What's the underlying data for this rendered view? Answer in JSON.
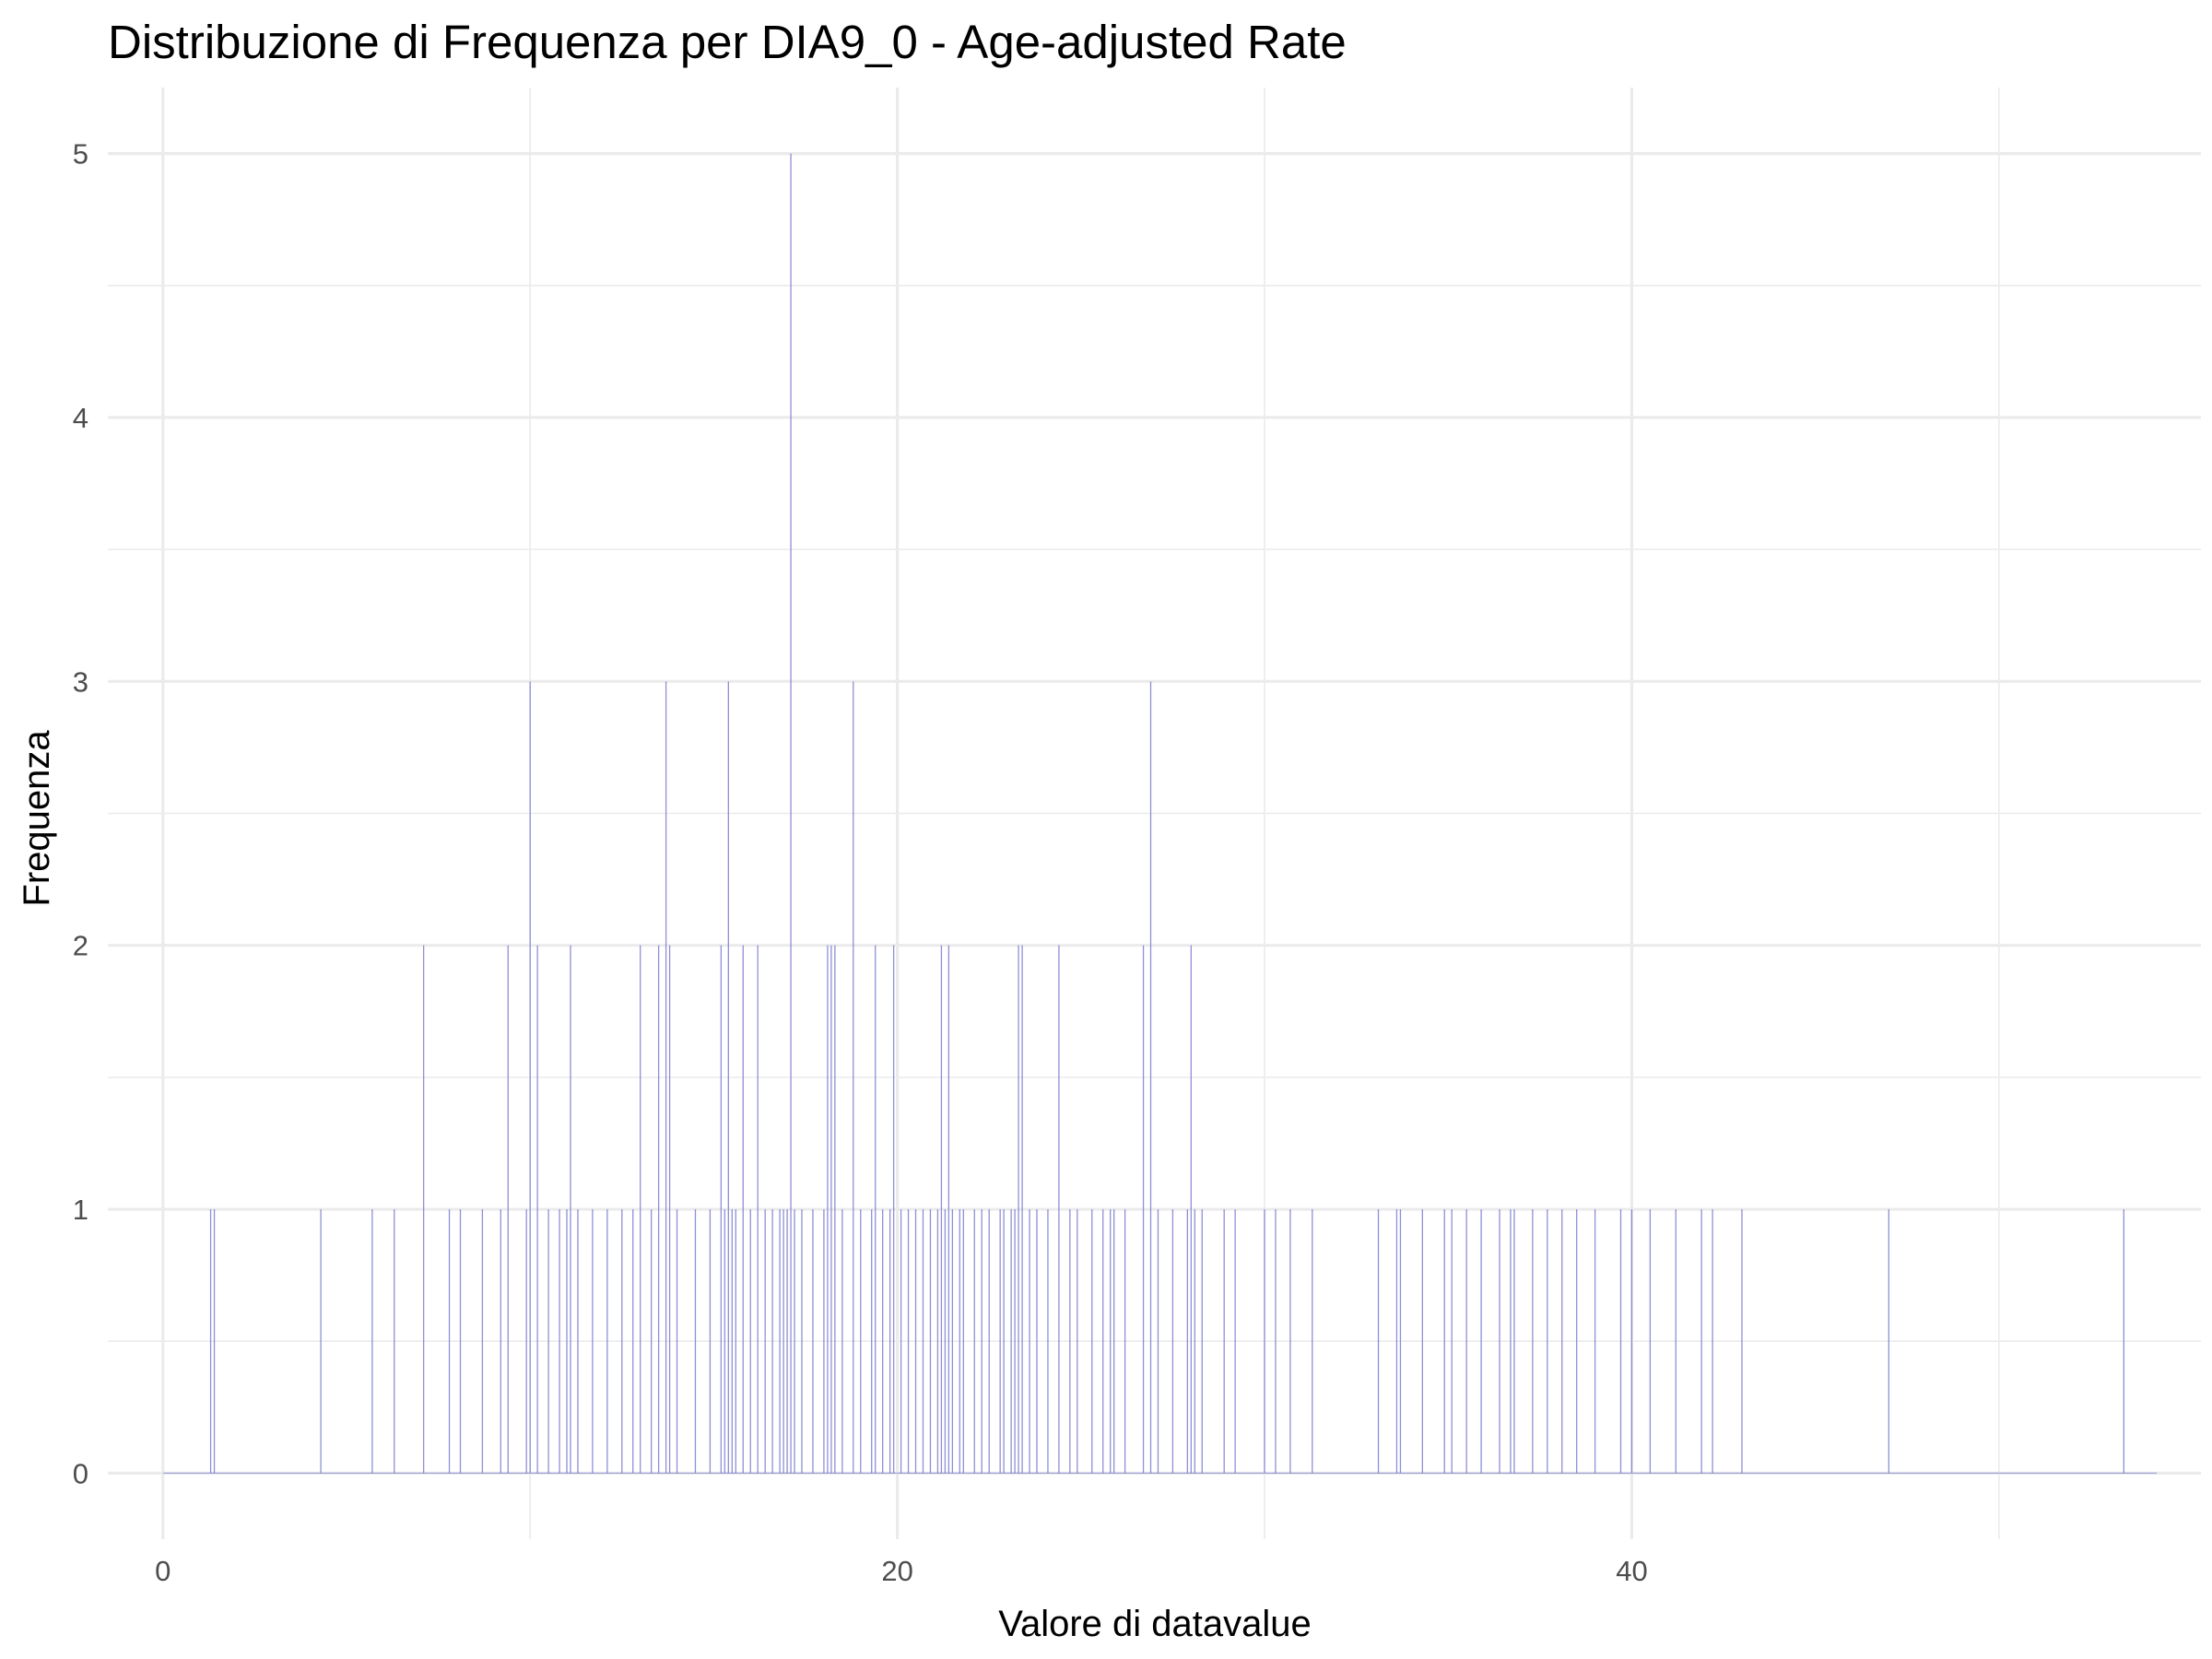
{
  "chart_data": {
    "type": "bar",
    "subtype": "histogram",
    "title": "Distribuzione di Frequenza per DIA9_0 - Age-adjusted Rate",
    "xlabel": "Valore di datavalue",
    "ylabel": "Frequenza",
    "xlim": [
      -1.5,
      55.5
    ],
    "ylim": [
      -0.25,
      5.25
    ],
    "x_ticks": [
      0,
      20,
      40
    ],
    "y_ticks": [
      0,
      1,
      2,
      3,
      4,
      5
    ],
    "grid": true,
    "legend": "none",
    "bar_color": "#7b7bd1",
    "bars": [
      {
        "x": 1.3,
        "count": 1
      },
      {
        "x": 1.4,
        "count": 1
      },
      {
        "x": 4.3,
        "count": 1
      },
      {
        "x": 5.7,
        "count": 1
      },
      {
        "x": 6.3,
        "count": 1
      },
      {
        "x": 7.1,
        "count": 2
      },
      {
        "x": 7.8,
        "count": 1
      },
      {
        "x": 8.1,
        "count": 1
      },
      {
        "x": 8.7,
        "count": 1
      },
      {
        "x": 9.2,
        "count": 1
      },
      {
        "x": 9.4,
        "count": 2
      },
      {
        "x": 9.9,
        "count": 1
      },
      {
        "x": 10.0,
        "count": 3
      },
      {
        "x": 10.2,
        "count": 2
      },
      {
        "x": 10.5,
        "count": 1
      },
      {
        "x": 10.8,
        "count": 1
      },
      {
        "x": 11.0,
        "count": 1
      },
      {
        "x": 11.1,
        "count": 2
      },
      {
        "x": 11.3,
        "count": 1
      },
      {
        "x": 11.7,
        "count": 1
      },
      {
        "x": 12.1,
        "count": 1
      },
      {
        "x": 12.5,
        "count": 1
      },
      {
        "x": 12.8,
        "count": 1
      },
      {
        "x": 13.0,
        "count": 2
      },
      {
        "x": 13.3,
        "count": 1
      },
      {
        "x": 13.5,
        "count": 2
      },
      {
        "x": 13.7,
        "count": 3
      },
      {
        "x": 13.8,
        "count": 2
      },
      {
        "x": 14.0,
        "count": 1
      },
      {
        "x": 14.5,
        "count": 1
      },
      {
        "x": 14.9,
        "count": 1
      },
      {
        "x": 15.2,
        "count": 2
      },
      {
        "x": 15.3,
        "count": 1
      },
      {
        "x": 15.4,
        "count": 3
      },
      {
        "x": 15.5,
        "count": 1
      },
      {
        "x": 15.6,
        "count": 1
      },
      {
        "x": 15.8,
        "count": 2
      },
      {
        "x": 16.0,
        "count": 1
      },
      {
        "x": 16.2,
        "count": 2
      },
      {
        "x": 16.4,
        "count": 1
      },
      {
        "x": 16.6,
        "count": 1
      },
      {
        "x": 16.8,
        "count": 1
      },
      {
        "x": 16.9,
        "count": 1
      },
      {
        "x": 17.0,
        "count": 1
      },
      {
        "x": 17.1,
        "count": 5
      },
      {
        "x": 17.2,
        "count": 1
      },
      {
        "x": 17.4,
        "count": 1
      },
      {
        "x": 17.7,
        "count": 1
      },
      {
        "x": 18.0,
        "count": 1
      },
      {
        "x": 18.1,
        "count": 2
      },
      {
        "x": 18.2,
        "count": 2
      },
      {
        "x": 18.3,
        "count": 2
      },
      {
        "x": 18.5,
        "count": 1
      },
      {
        "x": 18.8,
        "count": 3
      },
      {
        "x": 19.0,
        "count": 1
      },
      {
        "x": 19.3,
        "count": 1
      },
      {
        "x": 19.4,
        "count": 2
      },
      {
        "x": 19.6,
        "count": 1
      },
      {
        "x": 19.8,
        "count": 1
      },
      {
        "x": 19.9,
        "count": 2
      },
      {
        "x": 20.1,
        "count": 1
      },
      {
        "x": 20.3,
        "count": 1
      },
      {
        "x": 20.5,
        "count": 1
      },
      {
        "x": 20.7,
        "count": 1
      },
      {
        "x": 20.9,
        "count": 1
      },
      {
        "x": 21.1,
        "count": 1
      },
      {
        "x": 21.2,
        "count": 2
      },
      {
        "x": 21.3,
        "count": 1
      },
      {
        "x": 21.4,
        "count": 2
      },
      {
        "x": 21.5,
        "count": 1
      },
      {
        "x": 21.7,
        "count": 1
      },
      {
        "x": 21.8,
        "count": 1
      },
      {
        "x": 22.1,
        "count": 1
      },
      {
        "x": 22.3,
        "count": 1
      },
      {
        "x": 22.5,
        "count": 1
      },
      {
        "x": 22.8,
        "count": 1
      },
      {
        "x": 22.9,
        "count": 1
      },
      {
        "x": 23.1,
        "count": 1
      },
      {
        "x": 23.2,
        "count": 1
      },
      {
        "x": 23.3,
        "count": 2
      },
      {
        "x": 23.4,
        "count": 2
      },
      {
        "x": 23.6,
        "count": 1
      },
      {
        "x": 23.8,
        "count": 1
      },
      {
        "x": 24.1,
        "count": 1
      },
      {
        "x": 24.4,
        "count": 2
      },
      {
        "x": 24.7,
        "count": 1
      },
      {
        "x": 24.9,
        "count": 1
      },
      {
        "x": 25.3,
        "count": 1
      },
      {
        "x": 25.6,
        "count": 1
      },
      {
        "x": 25.8,
        "count": 1
      },
      {
        "x": 25.9,
        "count": 1
      },
      {
        "x": 26.2,
        "count": 1
      },
      {
        "x": 26.7,
        "count": 2
      },
      {
        "x": 26.9,
        "count": 3
      },
      {
        "x": 27.1,
        "count": 1
      },
      {
        "x": 27.5,
        "count": 1
      },
      {
        "x": 27.9,
        "count": 1
      },
      {
        "x": 28.0,
        "count": 2
      },
      {
        "x": 28.1,
        "count": 1
      },
      {
        "x": 28.3,
        "count": 1
      },
      {
        "x": 28.9,
        "count": 1
      },
      {
        "x": 29.2,
        "count": 1
      },
      {
        "x": 30.0,
        "count": 1
      },
      {
        "x": 30.3,
        "count": 1
      },
      {
        "x": 30.7,
        "count": 1
      },
      {
        "x": 31.3,
        "count": 1
      },
      {
        "x": 33.1,
        "count": 1
      },
      {
        "x": 33.6,
        "count": 1
      },
      {
        "x": 33.7,
        "count": 1
      },
      {
        "x": 34.3,
        "count": 1
      },
      {
        "x": 34.9,
        "count": 1
      },
      {
        "x": 35.1,
        "count": 1
      },
      {
        "x": 35.5,
        "count": 1
      },
      {
        "x": 35.9,
        "count": 1
      },
      {
        "x": 36.4,
        "count": 1
      },
      {
        "x": 36.7,
        "count": 1
      },
      {
        "x": 36.8,
        "count": 1
      },
      {
        "x": 37.3,
        "count": 1
      },
      {
        "x": 37.7,
        "count": 1
      },
      {
        "x": 38.1,
        "count": 1
      },
      {
        "x": 38.5,
        "count": 1
      },
      {
        "x": 39.0,
        "count": 1
      },
      {
        "x": 39.7,
        "count": 1
      },
      {
        "x": 40.0,
        "count": 1
      },
      {
        "x": 40.5,
        "count": 1
      },
      {
        "x": 41.2,
        "count": 1
      },
      {
        "x": 41.9,
        "count": 1
      },
      {
        "x": 42.2,
        "count": 1
      },
      {
        "x": 43.0,
        "count": 1
      },
      {
        "x": 47.0,
        "count": 1
      },
      {
        "x": 53.4,
        "count": 1
      }
    ]
  }
}
